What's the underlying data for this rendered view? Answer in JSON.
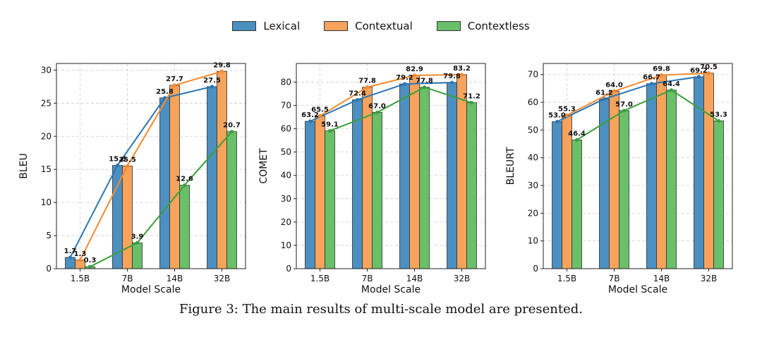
{
  "legend": [
    {
      "name": "Lexical",
      "color": "#4c8fc1"
    },
    {
      "name": "Contextual",
      "color": "#f7a35c"
    },
    {
      "name": "Contextless",
      "color": "#6abf69"
    }
  ],
  "caption": "Figure 3: The main results of multi-scale model are presented.",
  "chart_data": [
    {
      "type": "bar",
      "title": "",
      "categories": [
        "1.5B",
        "7B",
        "14B",
        "32B"
      ],
      "xlabel": "Model Scale",
      "ylabel": "BLEU",
      "ylim": [
        0,
        31
      ],
      "yticks": [
        0,
        5,
        10,
        15,
        20,
        25,
        30
      ],
      "grid": true,
      "series": [
        {
          "name": "Lexical",
          "values": [
            1.7,
            15.6,
            25.8,
            27.5
          ],
          "labels": [
            "1.7",
            "15.6",
            "25.8",
            "27.5"
          ]
        },
        {
          "name": "Contextual",
          "values": [
            1.3,
            15.5,
            27.7,
            29.8
          ],
          "labels": [
            "1.3",
            "15.5",
            "27.7",
            "29.8"
          ]
        },
        {
          "name": "Contextless",
          "values": [
            0.3,
            3.9,
            12.6,
            20.7
          ],
          "labels": [
            "0.3",
            "3.9",
            "12.6",
            "20.7"
          ]
        }
      ]
    },
    {
      "type": "bar",
      "title": "",
      "categories": [
        "1.5B",
        "7B",
        "14B",
        "32B"
      ],
      "xlabel": "Model Scale",
      "ylabel": "COMET",
      "ylim": [
        0,
        88
      ],
      "yticks": [
        0,
        10,
        20,
        30,
        40,
        50,
        60,
        70,
        80
      ],
      "grid": true,
      "series": [
        {
          "name": "Lexical",
          "values": [
            63.2,
            72.4,
            79.2,
            79.8
          ],
          "labels": [
            "63.2",
            "72.4",
            "79.2",
            "79.8"
          ]
        },
        {
          "name": "Contextual",
          "values": [
            65.5,
            77.8,
            82.9,
            83.2
          ],
          "labels": [
            "65.5",
            "77.8",
            "82.9",
            "83.2"
          ]
        },
        {
          "name": "Contextless",
          "values": [
            59.1,
            67.0,
            77.8,
            71.2
          ],
          "labels": [
            "59.1",
            "67.0",
            "77.8",
            "71.2"
          ]
        }
      ]
    },
    {
      "type": "bar",
      "title": "",
      "categories": [
        "1.5B",
        "7B",
        "14B",
        "32B"
      ],
      "xlabel": "Model Scale",
      "ylabel": "BLEURT",
      "ylim": [
        0,
        74
      ],
      "yticks": [
        0,
        10,
        20,
        30,
        40,
        50,
        60,
        70
      ],
      "grid": true,
      "series": [
        {
          "name": "Lexical",
          "values": [
            53.0,
            61.2,
            66.7,
            69.2
          ],
          "labels": [
            "53.0",
            "61.2",
            "66.7",
            "69.2"
          ]
        },
        {
          "name": "Contextual",
          "values": [
            55.3,
            64.0,
            69.8,
            70.5
          ],
          "labels": [
            "55.3",
            "64.0",
            "69.8",
            "70.5"
          ]
        },
        {
          "name": "Contextless",
          "values": [
            46.4,
            57.0,
            64.4,
            53.3
          ],
          "labels": [
            "46.4",
            "57.0",
            "64.4",
            "53.3"
          ]
        }
      ]
    }
  ]
}
